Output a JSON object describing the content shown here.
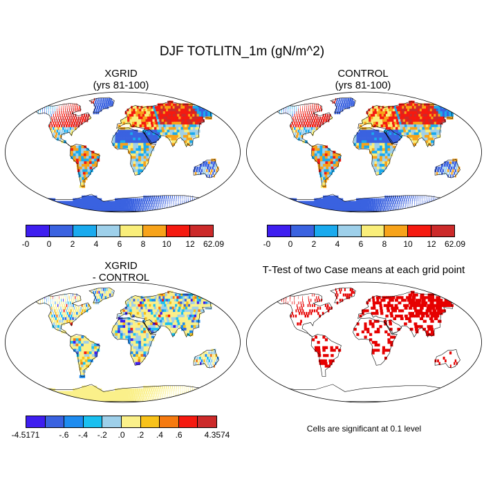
{
  "title": "DJF TOTLITN_1m (gN/m^2)",
  "panels": [
    {
      "title_line1": "XGRID",
      "title_line2": "(yrs 81-100)"
    },
    {
      "title_line1": "CONTROL",
      "title_line2": "(yrs 81-100)"
    },
    {
      "title_line1": "XGRID",
      "title_line2": "- CONTROL"
    },
    {
      "title_line1": "T-Test of two Case means at each grid point",
      "title_line2": ""
    }
  ],
  "colorbar_abs": {
    "colors": [
      "#3e1ef0",
      "#3a62e0",
      "#1aaaee",
      "#9ed0ea",
      "#f9ee7a",
      "#f7a31a",
      "#f51a10",
      "#cc2a2a"
    ],
    "labels": [
      "-0",
      "0",
      "2",
      "4",
      "6",
      "8",
      "10",
      "12",
      "62.09"
    ]
  },
  "colorbar_diff": {
    "colors": [
      "#3e1ef0",
      "#3a62e0",
      "#1e8cf0",
      "#1ac0f0",
      "#9ed0ea",
      "#faf08a",
      "#f8c21a",
      "#f57a10",
      "#f51a10",
      "#cc2a2a"
    ],
    "labels": [
      "-4.5171",
      "",
      "-.6",
      "-.4",
      "-.2",
      ".0",
      ".2",
      ".4",
      ".6",
      "",
      "4.3574"
    ]
  },
  "ttest_note": "Cells are significant at 0.1 level",
  "map_colors": {
    "ocean": "#ffffff",
    "land_abs_base": "#3a62e0",
    "land_diff_base": "#faf08a",
    "significant": "#e60000",
    "coast": "#000000"
  }
}
